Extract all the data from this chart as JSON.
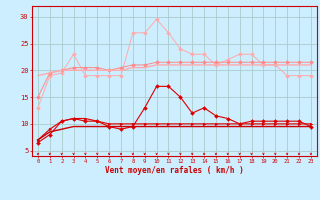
{
  "x": [
    0,
    1,
    2,
    3,
    4,
    5,
    6,
    7,
    8,
    9,
    10,
    11,
    12,
    13,
    14,
    15,
    16,
    17,
    18,
    19,
    20,
    21,
    22,
    23
  ],
  "background_color": "#cceeff",
  "grid_color": "#aacccc",
  "xlabel": "Vent moyen/en rafales ( km/h )",
  "xlabel_color": "#cc0000",
  "tick_color": "#cc0000",
  "ylim": [
    4,
    32
  ],
  "yticks": [
    5,
    10,
    15,
    20,
    25,
    30
  ],
  "line1_y": [
    13,
    19,
    19.5,
    23,
    19,
    19,
    19,
    19,
    27,
    27,
    29.5,
    27,
    24,
    23,
    23,
    21,
    22,
    23,
    23,
    21,
    21,
    19,
    19,
    19
  ],
  "line2_y": [
    15,
    19.5,
    20,
    20.5,
    20.5,
    20.5,
    20,
    20.5,
    21,
    21,
    21.5,
    21.5,
    21.5,
    21.5,
    21.5,
    21.5,
    21.5,
    21.5,
    21.5,
    21.5,
    21.5,
    21.5,
    21.5,
    21.5
  ],
  "line3_y": [
    19,
    19.5,
    20,
    20,
    20,
    20,
    20,
    20,
    20.5,
    20.5,
    21,
    21,
    21,
    21,
    21,
    21,
    21,
    21,
    21,
    21,
    21,
    21,
    21,
    21
  ],
  "line4_y": [
    6.5,
    8.0,
    10.5,
    11,
    10.5,
    10.5,
    9.5,
    9,
    9.5,
    13,
    17,
    17,
    15,
    12,
    13,
    11.5,
    11,
    10,
    10.5,
    10.5,
    10.5,
    10.5,
    10.5,
    9.5
  ],
  "line5_y": [
    7,
    9,
    10.5,
    11,
    11,
    10.5,
    10,
    10,
    10,
    10,
    10,
    10,
    10,
    10,
    10,
    10,
    10,
    10,
    10,
    10,
    10,
    10,
    10,
    10
  ],
  "line6_y": [
    7,
    8.5,
    9,
    9.5,
    9.5,
    9.5,
    9.5,
    9.5,
    9.5,
    9.5,
    9.5,
    9.5,
    9.5,
    9.5,
    9.5,
    9.5,
    9.5,
    9.5,
    9.5,
    9.5,
    9.5,
    9.5,
    9.5,
    9.5
  ],
  "line1_color": "#ffaaaa",
  "line2_color": "#ff8888",
  "line3_color": "#ffaaaa",
  "line4_color": "#dd0000",
  "line5_color": "#dd0000",
  "line6_color": "#cc0000"
}
